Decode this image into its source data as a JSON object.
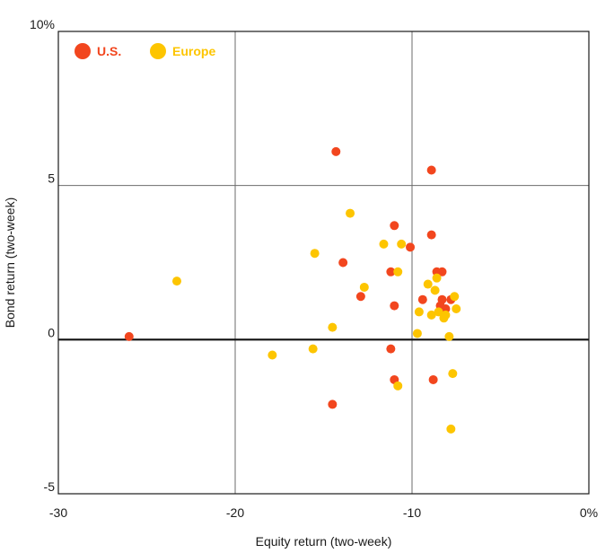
{
  "chart_data": {
    "type": "scatter",
    "title": "",
    "xlabel": "Equity return (two-week)",
    "ylabel": "Bond return (two-week)",
    "xlim": [
      -30,
      0
    ],
    "ylim": [
      -5,
      10
    ],
    "x_ticks": [
      "-30",
      "-20",
      "-10",
      "0%"
    ],
    "y_ticks": [
      "-5",
      "0",
      "5",
      "10%"
    ],
    "grid": true,
    "legend_position": "top-left",
    "series": [
      {
        "name": "U.S.",
        "color": "#f2461e",
        "points": [
          [
            -26.0,
            0.1
          ],
          [
            -14.3,
            6.1
          ],
          [
            -8.9,
            5.5
          ],
          [
            -11.0,
            3.7
          ],
          [
            -10.1,
            3.0
          ],
          [
            -8.9,
            3.4
          ],
          [
            -13.9,
            2.5
          ],
          [
            -11.2,
            2.2
          ],
          [
            -8.6,
            2.2
          ],
          [
            -8.3,
            2.2
          ],
          [
            -12.9,
            1.4
          ],
          [
            -11.0,
            1.1
          ],
          [
            -9.4,
            1.3
          ],
          [
            -8.3,
            1.3
          ],
          [
            -7.8,
            1.3
          ],
          [
            -8.4,
            1.1
          ],
          [
            -8.1,
            1.0
          ],
          [
            -11.2,
            -0.3
          ],
          [
            -11.0,
            -1.3
          ],
          [
            -8.8,
            -1.3
          ],
          [
            -14.5,
            -2.1
          ]
        ]
      },
      {
        "name": "Europe",
        "color": "#fdc500",
        "points": [
          [
            -23.3,
            1.9
          ],
          [
            -13.5,
            4.1
          ],
          [
            -15.5,
            2.8
          ],
          [
            -11.6,
            3.1
          ],
          [
            -10.6,
            3.1
          ],
          [
            -10.8,
            2.2
          ],
          [
            -12.7,
            1.7
          ],
          [
            -9.1,
            1.8
          ],
          [
            -8.6,
            2.0
          ],
          [
            -8.7,
            1.6
          ],
          [
            -7.6,
            1.4
          ],
          [
            -9.6,
            0.9
          ],
          [
            -8.9,
            0.8
          ],
          [
            -8.5,
            0.9
          ],
          [
            -8.1,
            0.8
          ],
          [
            -7.5,
            1.0
          ],
          [
            -8.2,
            0.7
          ],
          [
            -14.5,
            0.4
          ],
          [
            -9.7,
            0.2
          ],
          [
            -7.9,
            0.1
          ],
          [
            -15.6,
            -0.3
          ],
          [
            -17.9,
            -0.5
          ],
          [
            -7.7,
            -1.1
          ],
          [
            -10.8,
            -1.5
          ],
          [
            -7.8,
            -2.9
          ]
        ]
      }
    ]
  }
}
